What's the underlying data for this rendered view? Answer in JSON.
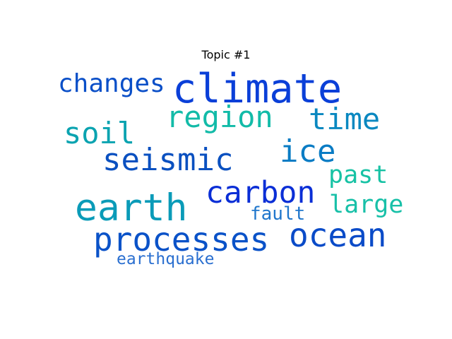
{
  "chart_data": {
    "type": "wordcloud",
    "title": "Topic #1",
    "words": [
      {
        "text": "climate",
        "color": "#0a3fd8",
        "rank": 1
      },
      {
        "text": "earth",
        "color": "#0a9bb8",
        "rank": 2
      },
      {
        "text": "carbon",
        "color": "#0a2ed6",
        "rank": 3
      },
      {
        "text": "processes",
        "color": "#0a52c8",
        "rank": 4
      },
      {
        "text": "ocean",
        "color": "#0a4bc8",
        "rank": 5
      },
      {
        "text": "seismic",
        "color": "#0a50c0",
        "rank": 6
      },
      {
        "text": "soil",
        "color": "#0aa3b0",
        "rank": 7
      },
      {
        "text": "region",
        "color": "#12bba8",
        "rank": 8
      },
      {
        "text": "time",
        "color": "#0a88c0",
        "rank": 9
      },
      {
        "text": "ice",
        "color": "#0a7cc4",
        "rank": 10
      },
      {
        "text": "changes",
        "color": "#0a4fc8",
        "rank": 11
      },
      {
        "text": "past",
        "color": "#17c2a4",
        "rank": 12
      },
      {
        "text": "large",
        "color": "#18c0a8",
        "rank": 13
      },
      {
        "text": "fault",
        "color": "#1f76cc",
        "rank": 14
      },
      {
        "text": "earthquake",
        "color": "#2a6fd0",
        "rank": 15
      }
    ]
  }
}
